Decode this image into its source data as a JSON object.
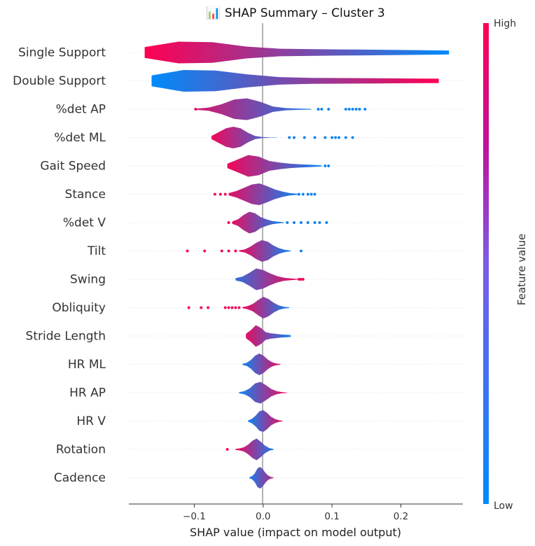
{
  "chart_data": {
    "type": "violin",
    "title": "📊 SHAP Summary – Cluster 3",
    "xlabel": "SHAP value (impact on model output)",
    "ylabel": "",
    "xlim": [
      -0.195,
      0.29
    ],
    "xticks": [
      -0.1,
      0.0,
      0.1,
      0.2
    ],
    "xtick_labels": [
      "−0.1",
      "0.0",
      "0.1",
      "0.2"
    ],
    "colorbar": {
      "label": "Feature value",
      "high_label": "High",
      "low_label": "Low",
      "high_color": "#ff0051",
      "low_color": "#008bfb",
      "mid_color": "#a020f0"
    },
    "features": [
      {
        "name": "Single Support",
        "min": -0.172,
        "max": 0.27,
        "peak": -0.07,
        "density": [
          0.5,
          1.0,
          0.95,
          0.55,
          0.35,
          0.3,
          0.28,
          0.25,
          0.22,
          0.18
        ],
        "value_at_min": 1,
        "value_at_max": 0,
        "dots": []
      },
      {
        "name": "Double Support",
        "min": -0.162,
        "max": 0.255,
        "peak": -0.08,
        "density": [
          0.5,
          1.0,
          0.95,
          0.6,
          0.35,
          0.28,
          0.26,
          0.24,
          0.22,
          0.2
        ],
        "value_at_min": 0,
        "value_at_max": 1,
        "dots": []
      },
      {
        "name": "%det AP",
        "min": -0.098,
        "max": 0.07,
        "peak": -0.03,
        "density": [
          0.05,
          0.15,
          0.45,
          0.9,
          1.0,
          0.7,
          0.25,
          0.1,
          0.06,
          0.03
        ],
        "value_at_min": 0.85,
        "value_at_max": 0.1,
        "dots": [
          [
            -0.098,
            0.95
          ],
          [
            0.08,
            0.05
          ],
          [
            0.085,
            0.05
          ],
          [
            0.095,
            0.05
          ],
          [
            0.12,
            0.05
          ],
          [
            0.125,
            0.05
          ],
          [
            0.13,
            0.05
          ],
          [
            0.135,
            0.05
          ],
          [
            0.14,
            0.05
          ],
          [
            0.148,
            0.05
          ]
        ]
      },
      {
        "name": "%det ML",
        "min": -0.075,
        "max": 0.02,
        "peak": -0.03,
        "density": [
          0.15,
          0.5,
          0.85,
          1.0,
          0.85,
          0.45,
          0.15,
          0.05,
          0.02,
          0.01
        ],
        "value_at_min": 0.95,
        "value_at_max": 0.15,
        "dots": [
          [
            0.038,
            0.05
          ],
          [
            0.045,
            0.05
          ],
          [
            0.06,
            0.05
          ],
          [
            0.075,
            0.05
          ],
          [
            0.09,
            0.05
          ],
          [
            0.1,
            0.05
          ],
          [
            0.105,
            0.05
          ],
          [
            0.11,
            0.05
          ],
          [
            0.12,
            0.05
          ],
          [
            0.13,
            0.05
          ]
        ]
      },
      {
        "name": "Gait Speed",
        "min": -0.052,
        "max": 0.085,
        "peak": -0.025,
        "density": [
          0.2,
          0.6,
          1.0,
          0.85,
          0.45,
          0.3,
          0.2,
          0.15,
          0.1,
          0.05
        ],
        "value_at_min": 0.95,
        "value_at_max": 0.05,
        "dots": [
          [
            0.09,
            0.05
          ],
          [
            0.095,
            0.05
          ]
        ]
      },
      {
        "name": "Stance",
        "min": -0.05,
        "max": 0.05,
        "peak": -0.01,
        "density": [
          0.1,
          0.3,
          0.6,
          0.9,
          1.0,
          0.75,
          0.45,
          0.25,
          0.1,
          0.05
        ],
        "value_at_min": 0.9,
        "value_at_max": 0.05,
        "dots": [
          [
            -0.07,
            0.95
          ],
          [
            -0.062,
            0.95
          ],
          [
            -0.055,
            0.95
          ],
          [
            0.052,
            0.05
          ],
          [
            0.058,
            0.05
          ],
          [
            0.065,
            0.05
          ],
          [
            0.07,
            0.05
          ],
          [
            0.075,
            0.05
          ]
        ]
      },
      {
        "name": "%det V",
        "min": -0.045,
        "max": 0.03,
        "peak": -0.01,
        "density": [
          0.1,
          0.3,
          0.7,
          1.0,
          0.85,
          0.5,
          0.3,
          0.15,
          0.08,
          0.03
        ],
        "value_at_min": 0.9,
        "value_at_max": 0.05,
        "dots": [
          [
            -0.05,
            0.95
          ],
          [
            0.035,
            0.05
          ],
          [
            0.045,
            0.05
          ],
          [
            0.055,
            0.05
          ],
          [
            0.065,
            0.05
          ],
          [
            0.075,
            0.05
          ],
          [
            0.082,
            0.05
          ],
          [
            0.092,
            0.05
          ]
        ]
      },
      {
        "name": "Tilt",
        "min": -0.035,
        "max": 0.04,
        "peak": 0.005,
        "density": [
          0.05,
          0.15,
          0.4,
          0.75,
          1.0,
          0.85,
          0.5,
          0.25,
          0.1,
          0.03
        ],
        "value_at_min": 0.95,
        "value_at_max": 0.05,
        "dots": [
          [
            -0.11,
            1.0
          ],
          [
            -0.085,
            1.0
          ],
          [
            -0.06,
            0.95
          ],
          [
            -0.05,
            0.95
          ],
          [
            -0.04,
            0.95
          ],
          [
            0.055,
            0.05
          ]
        ]
      },
      {
        "name": "Swing",
        "min": -0.04,
        "max": 0.05,
        "peak": -0.005,
        "density": [
          0.1,
          0.25,
          0.6,
          1.0,
          0.85,
          0.55,
          0.3,
          0.15,
          0.08,
          0.03
        ],
        "value_at_min": 0.2,
        "value_at_max": 0.95,
        "dots": [
          [
            0.052,
            0.95
          ],
          [
            0.055,
            0.95
          ],
          [
            0.058,
            0.95
          ]
        ]
      },
      {
        "name": "Obliquity",
        "min": -0.03,
        "max": 0.038,
        "peak": 0.0,
        "density": [
          0.05,
          0.15,
          0.35,
          0.7,
          1.0,
          0.8,
          0.45,
          0.2,
          0.08,
          0.03
        ],
        "value_at_min": 0.95,
        "value_at_max": 0.05,
        "dots": [
          [
            -0.108,
            1.0
          ],
          [
            -0.09,
            1.0
          ],
          [
            -0.08,
            1.0
          ],
          [
            -0.055,
            0.95
          ],
          [
            -0.05,
            0.95
          ],
          [
            -0.045,
            0.95
          ],
          [
            -0.04,
            0.95
          ],
          [
            -0.035,
            0.95
          ]
        ]
      },
      {
        "name": "Stride Length",
        "min": -0.025,
        "max": 0.04,
        "peak": -0.008,
        "density": [
          0.2,
          0.55,
          1.0,
          0.75,
          0.35,
          0.25,
          0.2,
          0.15,
          0.12,
          0.08
        ],
        "value_at_min": 0.9,
        "value_at_max": 0.05,
        "dots": []
      },
      {
        "name": "HR ML",
        "min": -0.03,
        "max": 0.025,
        "peak": 0.002,
        "density": [
          0.05,
          0.15,
          0.4,
          0.8,
          1.0,
          0.8,
          0.45,
          0.2,
          0.08,
          0.03
        ],
        "value_at_min": 0.05,
        "value_at_max": 0.9,
        "dots": []
      },
      {
        "name": "HR AP",
        "min": -0.035,
        "max": 0.035,
        "peak": -0.002,
        "density": [
          0.05,
          0.15,
          0.4,
          0.85,
          1.0,
          0.7,
          0.35,
          0.15,
          0.06,
          0.02
        ],
        "value_at_min": 0.05,
        "value_at_max": 0.95,
        "dots": []
      },
      {
        "name": "HR V",
        "min": -0.022,
        "max": 0.028,
        "peak": 0.002,
        "density": [
          0.05,
          0.2,
          0.5,
          0.9,
          1.0,
          0.75,
          0.4,
          0.2,
          0.08,
          0.03
        ],
        "value_at_min": 0.05,
        "value_at_max": 0.9,
        "dots": []
      },
      {
        "name": "Rotation",
        "min": -0.04,
        "max": 0.015,
        "peak": 0.003,
        "density": [
          0.05,
          0.1,
          0.2,
          0.45,
          0.8,
          1.0,
          0.7,
          0.35,
          0.12,
          0.04
        ],
        "value_at_min": 0.95,
        "value_at_max": 0.1,
        "dots": [
          [
            -0.052,
            1.0
          ]
        ]
      },
      {
        "name": "Cadence",
        "min": -0.02,
        "max": 0.015,
        "peak": 0.0,
        "density": [
          0.05,
          0.15,
          0.4,
          0.85,
          1.0,
          0.8,
          0.45,
          0.2,
          0.08,
          0.03
        ],
        "value_at_min": 0.1,
        "value_at_max": 0.7,
        "dots": []
      }
    ]
  }
}
